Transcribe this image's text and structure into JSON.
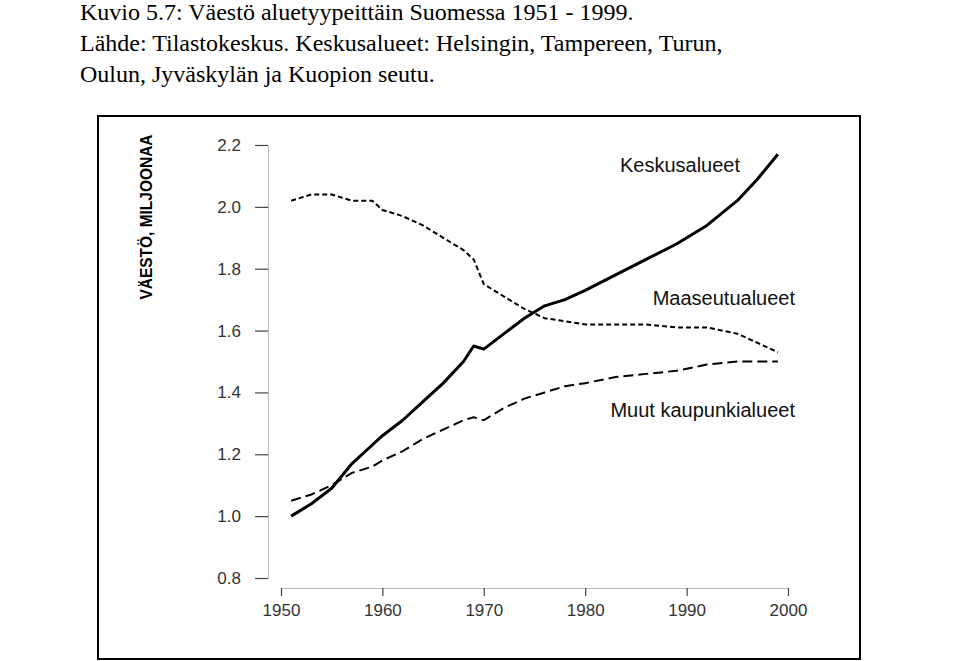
{
  "chart_data": {
    "type": "line",
    "title": "Kuvio 5.7: Väestö aluetyypeittäin Suomessa 1951 - 1999.",
    "subtitle": "Lähde: Tilastokeskus. Keskusalueet: Helsingin, Tampereen, Turun, Oulun, Jyväskylän ja Kuopion seutu.",
    "ylabel": "VÄESTÖ, MILJOONAA",
    "x": [
      1951,
      1953,
      1955,
      1957,
      1959,
      1960,
      1962,
      1964,
      1966,
      1968,
      1969,
      1970,
      1972,
      1974,
      1976,
      1978,
      1980,
      1983,
      1986,
      1989,
      1992,
      1995,
      1997,
      1999
    ],
    "series": [
      {
        "name": "Keskusalueet",
        "color": "#000000",
        "line_style": "solid",
        "values": [
          1.0,
          1.04,
          1.09,
          1.17,
          1.23,
          1.26,
          1.31,
          1.37,
          1.43,
          1.5,
          1.55,
          1.54,
          1.59,
          1.64,
          1.68,
          1.7,
          1.73,
          1.78,
          1.83,
          1.88,
          1.94,
          2.02,
          2.09,
          2.17
        ]
      },
      {
        "name": "Maaseutualueet",
        "color": "#000000",
        "line_style": "dashed",
        "values": [
          2.02,
          2.04,
          2.04,
          2.02,
          2.02,
          1.99,
          1.97,
          1.94,
          1.9,
          1.86,
          1.83,
          1.75,
          1.71,
          1.67,
          1.64,
          1.63,
          1.62,
          1.62,
          1.62,
          1.61,
          1.61,
          1.59,
          1.56,
          1.53
        ]
      },
      {
        "name": "Muut kaupunkialueet",
        "color": "#000000",
        "line_style": "longdash",
        "values": [
          1.05,
          1.07,
          1.1,
          1.14,
          1.16,
          1.18,
          1.21,
          1.25,
          1.28,
          1.31,
          1.32,
          1.31,
          1.35,
          1.38,
          1.4,
          1.42,
          1.43,
          1.45,
          1.46,
          1.47,
          1.49,
          1.5,
          1.5,
          1.5
        ]
      }
    ],
    "xlim": [
      1950,
      2000
    ],
    "xticks": [
      1950,
      1960,
      1970,
      1980,
      1990,
      2000
    ],
    "ylim": [
      0.8,
      2.2
    ],
    "yticks": [
      0.8,
      {
        "value": 1,
        "label": "1.0"
      },
      1.2,
      1.4,
      1.6,
      1.8,
      {
        "value": 2,
        "label": "2.0"
      },
      2.2
    ],
    "grid": false
  }
}
